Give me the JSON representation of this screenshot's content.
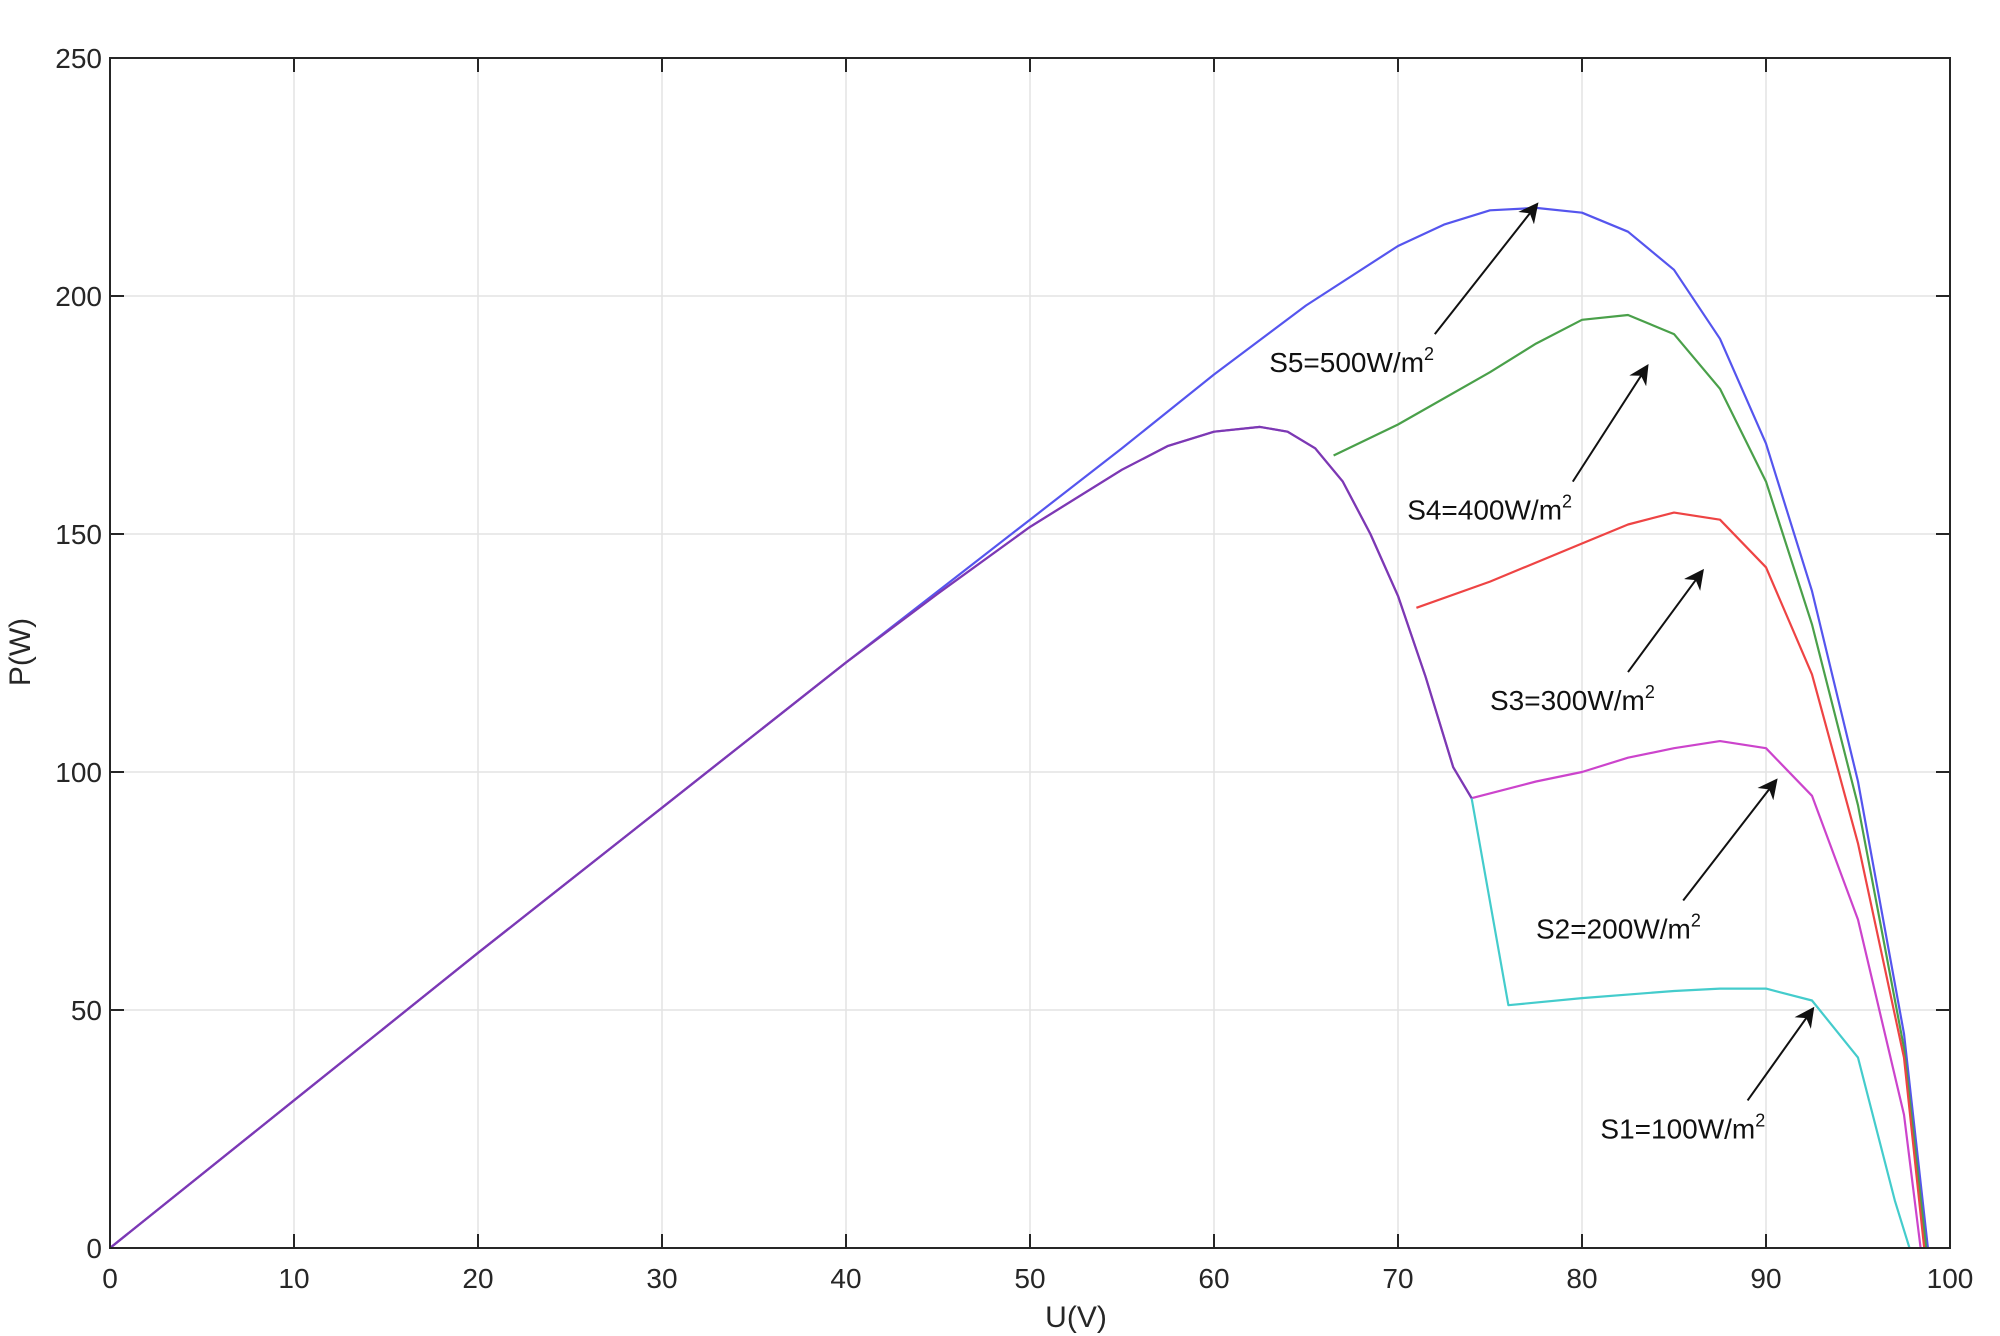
{
  "chart_data": {
    "type": "line",
    "title": "",
    "xlabel": "U(V)",
    "ylabel": "P(W)",
    "xlim": [
      0,
      100
    ],
    "ylim": [
      0,
      250
    ],
    "xticks": [
      0,
      10,
      20,
      30,
      40,
      50,
      60,
      70,
      80,
      90,
      100
    ],
    "yticks": [
      0,
      50,
      100,
      150,
      200,
      250
    ],
    "xtick_labels": [
      "0",
      "10",
      "20",
      "30",
      "40",
      "50",
      "60",
      "70",
      "80",
      "90",
      "100"
    ],
    "ytick_labels": [
      "0",
      "50",
      "100",
      "150",
      "200",
      "250"
    ],
    "grid": true,
    "series": [
      {
        "color": "#5555ee",
        "x": [
          0,
          10,
          20,
          30,
          40,
          45,
          50,
          55,
          60,
          65,
          70,
          72.5,
          75,
          77.5,
          80,
          82.5,
          85,
          87.5,
          90,
          92.5,
          95,
          97.5,
          98.8
        ],
        "y": [
          0,
          31,
          62,
          92.5,
          123,
          138,
          153,
          168,
          183.5,
          198,
          210.5,
          215,
          218,
          218.5,
          217.5,
          213.5,
          205.5,
          191,
          169,
          138,
          98,
          45,
          0
        ]
      },
      {
        "color": "#4aa04a",
        "x": [
          66.5,
          70,
          75,
          77.5,
          80,
          82.5,
          85,
          87.5,
          90,
          92.5,
          95,
          97.5,
          98.7
        ],
        "y": [
          166.5,
          173,
          184,
          190,
          195,
          196,
          192,
          180.5,
          161,
          131,
          93,
          42,
          0
        ]
      },
      {
        "color": "#ee4444",
        "x": [
          71,
          75,
          80,
          82.5,
          85,
          87.5,
          90,
          92.5,
          95,
          97.5,
          98.6
        ],
        "y": [
          134.5,
          140,
          148,
          152,
          154.5,
          153,
          143,
          120.5,
          85,
          40,
          0
        ]
      },
      {
        "color": "#cc44cc",
        "x": [
          0,
          10,
          20,
          30,
          40,
          45,
          50,
          55,
          57.5,
          60,
          62.5,
          64,
          65.5,
          67,
          68.5,
          70,
          71.5,
          73,
          74,
          77.5,
          80,
          82.5,
          85,
          87.5,
          90,
          92.5,
          95,
          97.5,
          98.4
        ],
        "y": [
          0,
          31,
          62,
          92.5,
          123,
          137.5,
          151.5,
          163.5,
          168.5,
          171.5,
          172.5,
          171.5,
          168,
          161,
          150,
          137,
          120,
          101,
          94.5,
          98,
          100,
          103,
          105,
          106.5,
          105,
          95,
          69,
          28,
          0
        ]
      },
      {
        "color": "#44cccc",
        "x": [
          74,
          76,
          80,
          85,
          87.5,
          90,
          92.5,
          95,
          97,
          97.8
        ],
        "y": [
          94.5,
          51,
          52.5,
          54,
          54.5,
          54.5,
          52,
          40,
          10,
          0
        ]
      },
      {
        "color": "#7a3ab4",
        "x": [
          0,
          10,
          20,
          30,
          40,
          45,
          50,
          55,
          57.5,
          60,
          62.5,
          64,
          65.5,
          67,
          68.5,
          70,
          71.5,
          73,
          74
        ],
        "y": [
          0,
          31,
          62,
          92.5,
          123,
          137.5,
          151.5,
          163.5,
          168.5,
          171.5,
          172.5,
          171.5,
          168,
          161,
          150,
          137,
          120,
          101,
          94.5
        ]
      }
    ],
    "annotations": [
      {
        "base": "S5=500W/m",
        "sup": "2",
        "text_at": [
          63,
          184
        ],
        "arrow_from": [
          72,
          192
        ],
        "arrow_to": [
          77.5,
          219
        ]
      },
      {
        "base": "S4=400W/m",
        "sup": "2",
        "text_at": [
          70.5,
          153
        ],
        "arrow_from": [
          79.5,
          161
        ],
        "arrow_to": [
          83.5,
          185
        ]
      },
      {
        "base": "S3=300W/m",
        "sup": "2",
        "text_at": [
          75,
          113
        ],
        "arrow_from": [
          82.5,
          121
        ],
        "arrow_to": [
          86.5,
          142
        ]
      },
      {
        "base": "S2=200W/m",
        "sup": "2",
        "text_at": [
          77.5,
          65
        ],
        "arrow_from": [
          85.5,
          73
        ],
        "arrow_to": [
          90.5,
          98
        ]
      },
      {
        "base": "S1=100W/m",
        "sup": "2",
        "text_at": [
          81,
          23
        ],
        "arrow_from": [
          89,
          31
        ],
        "arrow_to": [
          92.5,
          50
        ]
      }
    ]
  }
}
